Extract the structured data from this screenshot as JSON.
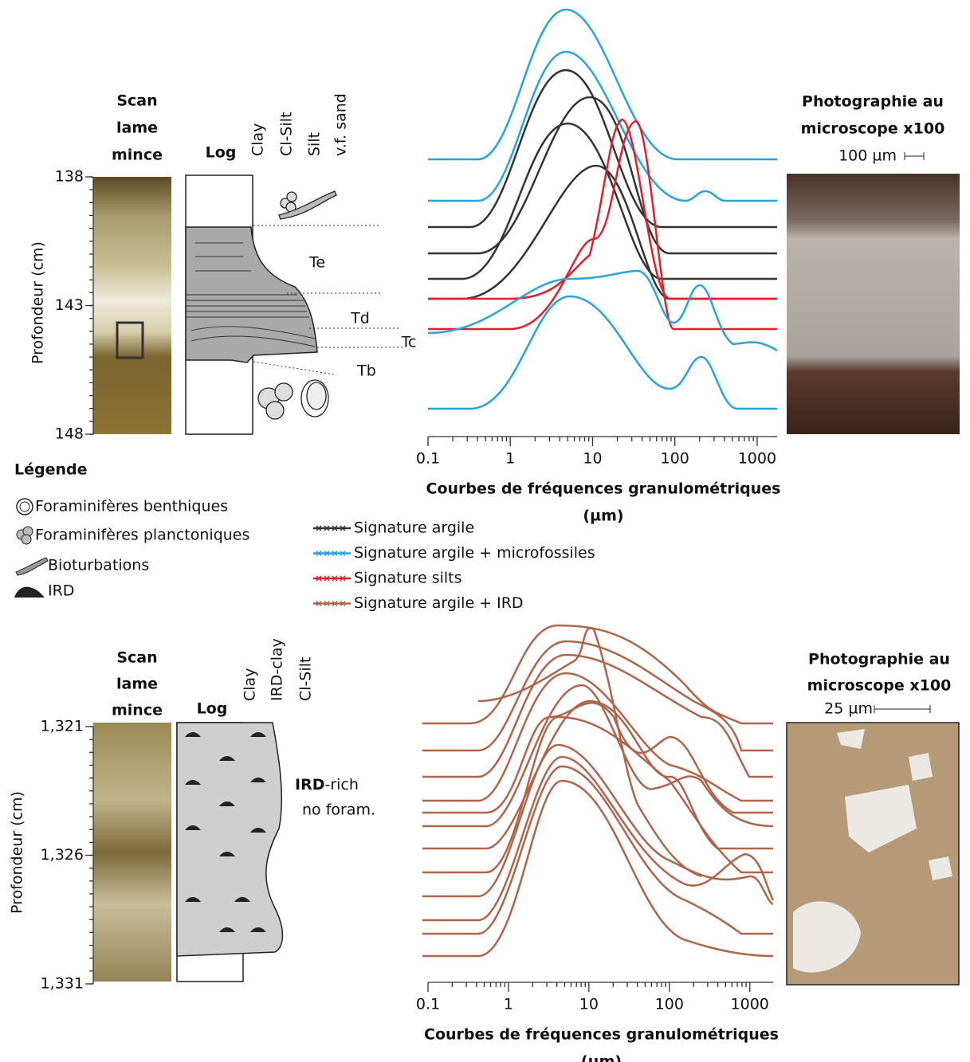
{
  "top": {
    "scan_title": [
      "Scan",
      "lame",
      "mince"
    ],
    "log_title": "Log",
    "grain_labels": [
      "Clay",
      "Cl-Silt",
      "Silt",
      "v.f. sand"
    ],
    "depth_label": "Profondeur (cm)",
    "ylim": [
      138,
      148
    ],
    "yticks": [
      138,
      143,
      148
    ],
    "facies": [
      "Te",
      "Td",
      "Tc",
      "Tb"
    ],
    "photo_title": [
      "Photographie au",
      "microscope x100"
    ],
    "scale_label": "100 µm"
  },
  "legend": {
    "title": "Légende",
    "items": [
      "Foraminifères benthiques",
      "Foraminifères planctoniques",
      "Bioturbations",
      "IRD"
    ]
  },
  "bottom": {
    "scan_title": [
      "Scan",
      "lame",
      "mince"
    ],
    "log_title": "Log",
    "grain_labels": [
      "Clay",
      "IRD-clay",
      "Cl-Silt"
    ],
    "depth_label": "Profondeur (cm)",
    "ylim": [
      1321,
      1331
    ],
    "yticks": [
      {
        "value": 1321,
        "label": "1,321"
      },
      {
        "value": 1326,
        "label": "1,326"
      },
      {
        "value": 1331,
        "label": "1,331"
      }
    ],
    "note": [
      "IRD",
      "-rich",
      "no foram."
    ],
    "photo_title": [
      "Photographie au",
      "microscope x100"
    ],
    "scale_label": "25 µm"
  },
  "chart_data": [
    {
      "type": "line",
      "x_label": [
        "Courbes de fréquences granulométriques",
        "(µm)"
      ],
      "xscale": "log",
      "xlim": [
        0.1,
        1750
      ],
      "xticks": [
        0.1,
        1,
        10,
        100,
        1000
      ],
      "series": [
        {
          "name": "Signature argile",
          "color": "#333333"
        },
        {
          "name": "Signature argile + microfossiles",
          "color": "#29a3dc"
        },
        {
          "name": "Signature silts",
          "color": "#e0202a"
        },
        {
          "name": "Signature argile + IRD",
          "color": "#b0654a"
        }
      ]
    },
    {
      "type": "line",
      "x_label": [
        "Courbes de fréquences granulométriques",
        "(µm)"
      ],
      "xscale": "log",
      "xlim": [
        0.1,
        1950
      ],
      "xticks": [
        0.1,
        1,
        10,
        100,
        1000
      ]
    }
  ]
}
